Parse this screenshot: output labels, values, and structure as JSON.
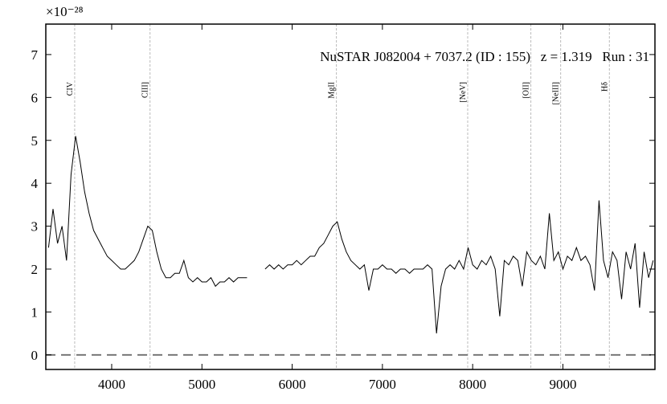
{
  "chart_data": {
    "type": "line",
    "title": "NuSTAR J082004 + 7037.2 (ID : 155)   z = 1.319   Run : 31",
    "offset_label": "×10⁻²⁸",
    "color": "#000000",
    "x": [
      3300,
      3350,
      3400,
      3450,
      3500,
      3550,
      3600,
      3650,
      3700,
      3750,
      3800,
      3850,
      3900,
      3950,
      4000,
      4050,
      4100,
      4150,
      4200,
      4250,
      4300,
      4350,
      4400,
      4450,
      4500,
      4550,
      4600,
      4650,
      4700,
      4750,
      4800,
      4850,
      4900,
      4950,
      5000,
      5050,
      5100,
      5150,
      5200,
      5250,
      5300,
      5350,
      5400,
      5450,
      5500,
      5550,
      5600,
      5650,
      5700,
      5750,
      5800,
      5850,
      5900,
      5950,
      6000,
      6050,
      6100,
      6150,
      6200,
      6250,
      6300,
      6350,
      6400,
      6450,
      6500,
      6550,
      6600,
      6650,
      6700,
      6750,
      6800,
      6850,
      6900,
      6950,
      7000,
      7050,
      7100,
      7150,
      7200,
      7250,
      7300,
      7350,
      7400,
      7450,
      7500,
      7550,
      7600,
      7650,
      7700,
      7750,
      7800,
      7850,
      7900,
      7950,
      8000,
      8050,
      8100,
      8150,
      8200,
      8250,
      8300,
      8350,
      8400,
      8450,
      8500,
      8550,
      8600,
      8650,
      8700,
      8750,
      8800,
      8850,
      8900,
      8950,
      9000,
      9050,
      9100,
      9150,
      9200,
      9250,
      9300,
      9350,
      9400,
      9450,
      9500,
      9550,
      9600,
      9650,
      9700,
      9750,
      9800,
      9850,
      9900,
      9950,
      10000
    ],
    "values": [
      2.5,
      3.4,
      2.6,
      3.0,
      2.2,
      4.2,
      5.1,
      4.5,
      3.8,
      3.3,
      2.9,
      2.7,
      2.5,
      2.3,
      2.2,
      2.1,
      2.0,
      2.0,
      2.1,
      2.2,
      2.4,
      2.7,
      3.0,
      2.9,
      2.4,
      2.0,
      1.8,
      1.8,
      1.9,
      1.9,
      2.2,
      1.8,
      1.7,
      1.8,
      1.7,
      1.7,
      1.8,
      1.6,
      1.7,
      1.7,
      1.8,
      1.7,
      1.8,
      1.8,
      1.8,
      null,
      null,
      null,
      2.0,
      2.1,
      2.0,
      2.1,
      2.0,
      2.1,
      2.1,
      2.2,
      2.1,
      2.2,
      2.3,
      2.3,
      2.5,
      2.6,
      2.8,
      3.0,
      3.1,
      2.7,
      2.4,
      2.2,
      2.1,
      2.0,
      2.1,
      1.5,
      2.0,
      2.0,
      2.1,
      2.0,
      2.0,
      1.9,
      2.0,
      2.0,
      1.9,
      2.0,
      2.0,
      2.0,
      2.1,
      2.0,
      0.5,
      1.6,
      2.0,
      2.1,
      2.0,
      2.2,
      2.0,
      2.5,
      2.1,
      2.0,
      2.2,
      2.1,
      2.3,
      2.0,
      0.9,
      2.2,
      2.1,
      2.3,
      2.2,
      1.6,
      2.4,
      2.2,
      2.1,
      2.3,
      2.0,
      3.3,
      2.2,
      2.4,
      2.0,
      2.3,
      2.2,
      2.5,
      2.2,
      2.3,
      2.1,
      1.5,
      3.6,
      2.2,
      1.8,
      2.4,
      2.2,
      1.3,
      2.4,
      2.0,
      2.6,
      1.1,
      2.4,
      1.8,
      2.2
    ],
    "annotations": [
      {
        "label": "CIV",
        "x": 3590
      },
      {
        "label": "CIII]",
        "x": 4425
      },
      {
        "label": "MgII",
        "x": 6490
      },
      {
        "label": "[NeV]",
        "x": 7945
      },
      {
        "label": "[OII]",
        "x": 8645
      },
      {
        "label": "[NeIII]",
        "x": 8975
      },
      {
        "label": "Hδ",
        "x": 9515
      }
    ],
    "hline": 0,
    "xlim": [
      3270,
      10020
    ],
    "ylim": [
      -0.34,
      7.71
    ],
    "xticks": [
      4000,
      5000,
      6000,
      7000,
      8000,
      9000
    ],
    "yticks": [
      0,
      1,
      2,
      3,
      4,
      5,
      6,
      7
    ]
  }
}
